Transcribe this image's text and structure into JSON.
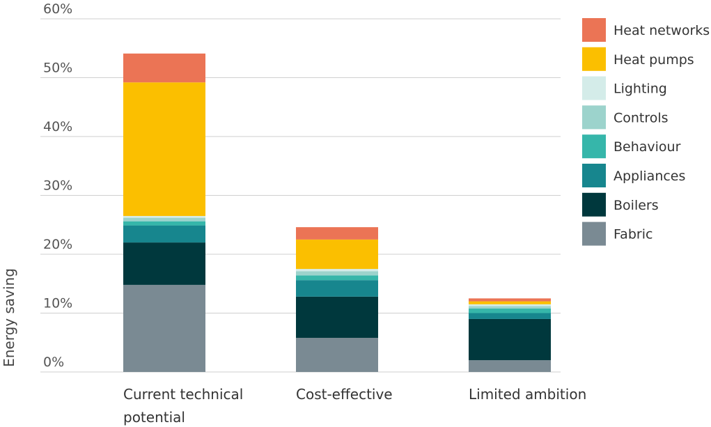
{
  "chart_data": {
    "type": "bar",
    "stacked": true,
    "title": "",
    "xlabel": "",
    "ylabel": "Energy saving",
    "ylim": [
      0,
      60
    ],
    "yticks": [
      0,
      10,
      20,
      30,
      40,
      50,
      60
    ],
    "yticks_labels": [
      "0%",
      "10%",
      "20%",
      "30%",
      "40%",
      "50%",
      "60%"
    ],
    "grid": true,
    "legend_position": "top-right",
    "categories": [
      "Current technical potential",
      "Cost-effective",
      "Limited ambition"
    ],
    "category_lines": [
      [
        "Current technical",
        "potential"
      ],
      [
        "Cost-effective"
      ],
      [
        "Limited ambition"
      ]
    ],
    "series": [
      {
        "name": "Fabric",
        "color": "#7a8a93",
        "values": [
          14.8,
          5.8,
          2.0
        ]
      },
      {
        "name": "Boilers",
        "color": "#00383d",
        "values": [
          7.2,
          7.0,
          7.0
        ]
      },
      {
        "name": "Appliances",
        "color": "#17868e",
        "values": [
          2.9,
          2.8,
          1.0
        ]
      },
      {
        "name": "Behaviour",
        "color": "#36b6aa",
        "values": [
          0.7,
          0.8,
          0.8
        ]
      },
      {
        "name": "Controls",
        "color": "#9cd3cc",
        "values": [
          0.6,
          0.7,
          0.4
        ]
      },
      {
        "name": "Lighting",
        "color": "#d4ece9",
        "values": [
          0.3,
          0.4,
          0.3
        ]
      },
      {
        "name": "Heat pumps",
        "color": "#fbbf00",
        "values": [
          22.7,
          5.0,
          0.5
        ]
      },
      {
        "name": "Heat networks",
        "color": "#eb7455",
        "values": [
          4.9,
          2.1,
          0.5
        ]
      }
    ],
    "legend_order": [
      "Heat networks",
      "Heat pumps",
      "Lighting",
      "Controls",
      "Behaviour",
      "Appliances",
      "Boilers",
      "Fabric"
    ]
  }
}
